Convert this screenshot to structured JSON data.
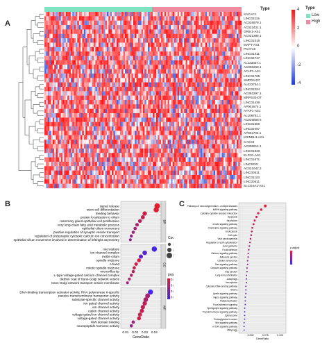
{
  "panel_labels": {
    "a": "A",
    "b": "B",
    "c": "C"
  },
  "heatmap": {
    "legend_title": "Type",
    "groups": [
      {
        "label": "Low",
        "color": "#7fe3c2"
      },
      {
        "label": "High",
        "color": "#f08aa0"
      }
    ],
    "scale_ticks": [
      "4",
      "2",
      "0",
      "-2",
      "-4"
    ],
    "scale_colors": {
      "high": "#e41a1c",
      "mid": "#ffffff",
      "low": "#1f3bd4"
    },
    "genes": [
      "SACAF2",
      "LINC02115",
      "AC026978.1",
      "AC023421.1",
      "GRIK1-AS1",
      "AC021395.1",
      "LINC01016",
      "MAPT-AS1",
      "PCAT18",
      "LINC01411",
      "LINC02747",
      "AL133337.1",
      "AC008268.1",
      "AFAP1-AS1",
      "LINC01765",
      "SMPD3-DT",
      "AL023754.1",
      "LINC02224",
      "AC093297.1",
      "MRPS33-DT",
      "LINC01436",
      "AP001574.1",
      "AFAP1-AS1",
      "AL109751.1",
      "AC025858.6",
      "LINC01656",
      "LINC02497",
      "AP001703.1",
      "KRINBL3-AS1",
      "CASC8",
      "AC008914.1",
      "LINC01833",
      "ELFN1-AS1",
      "LINC01671",
      "LINCROD",
      "AC021042.2",
      "LINC00511",
      "LINC01133",
      "LINC00511",
      "SLCO4A1-AS1"
    ]
  },
  "go_dotplot": {
    "xlabel": "GeneRatio",
    "x_ticks": [
      "0.01",
      "0.02",
      "0.03",
      "0.04"
    ],
    "size_legend": {
      "title": "Count",
      "values": [
        "10",
        "20",
        "30"
      ]
    },
    "color_legend": {
      "title": "pvalue",
      "values": [
        "0.01",
        "0.02",
        "0.03",
        "0.04"
      ]
    },
    "sections": [
      {
        "name": "BP",
        "terms": [
          "signal release",
          "stem cell differentiation",
          "feeding behavior",
          "protein localization to cilium",
          "mammary gland epithelial cell proliferation",
          "very long-chain fatty acid metabolic process",
          "epithelial cilium movement",
          "positive regulation of synaptic vesicle transport",
          "regulation of presynaptic cytosolic calcium ion concentration",
          "epithelial cilium movement involved in determination of left/right asymmetry"
        ],
        "generatio": [
          0.043,
          0.042,
          0.03,
          0.028,
          0.025,
          0.022,
          0.02,
          0.018,
          0.016,
          0.015
        ],
        "count": [
          30,
          28,
          20,
          18,
          16,
          14,
          12,
          11,
          10,
          9
        ],
        "pvalue": [
          0.005,
          0.006,
          0.01,
          0.012,
          0.014,
          0.016,
          0.018,
          0.02,
          0.022,
          0.024
        ]
      },
      {
        "name": "CC",
        "terms": [
          "microtubule",
          "ion channel complex",
          "motile cilium",
          "spindle midzone",
          "A band",
          "mitotic spindle midzone",
          "microvillus tip",
          "L-type voltage-gated calcium channel complex",
          "clathrin coat of trans-Golgi network vesicle",
          "trans-Golgi network transport vesicle membrane"
        ],
        "generatio": [
          0.04,
          0.03,
          0.026,
          0.024,
          0.021,
          0.019,
          0.018,
          0.016,
          0.014,
          0.012
        ],
        "count": [
          28,
          22,
          19,
          16,
          14,
          12,
          11,
          10,
          9,
          8
        ],
        "pvalue": [
          0.04,
          0.036,
          0.034,
          0.008,
          0.01,
          0.012,
          0.014,
          0.016,
          0.018,
          0.02
        ]
      },
      {
        "name": "MF",
        "terms": [
          "DNA-binding transcription activator activity, RNA polymerase II-specific",
          "passive transmembrane transporter activity",
          "substrate-specific channel activity",
          "ion gated channel activity",
          "ion channel activity",
          "cation channel activity",
          "voltage-gated ion channel activity",
          "voltage-gated channel activity",
          "WW domain binding",
          "neuropeptide hormone activity"
        ],
        "generatio": [
          0.036,
          0.033,
          0.031,
          0.03,
          0.028,
          0.027,
          0.025,
          0.024,
          0.018,
          0.016
        ],
        "count": [
          26,
          24,
          22,
          21,
          20,
          19,
          18,
          17,
          12,
          11
        ],
        "pvalue": [
          0.04,
          0.018,
          0.016,
          0.014,
          0.013,
          0.012,
          0.011,
          0.01,
          0.02,
          0.022
        ]
      }
    ]
  },
  "kegg_plot": {
    "xlabel": "GeneRatio",
    "legend_title": "p.adjust",
    "terms": [
      "Pathways of neurodegeneration - multiple diseases",
      "MAPK signaling pathway",
      "Cytokine-cytokine receptor interaction",
      "Apoptosis",
      "Alcoholism",
      "Insulin signaling pathway",
      "Chemokine signaling pathway",
      "Endocytosis",
      "Cell cycle",
      "Viral carcinogenesis",
      "Regulation of actin cytoskeleton",
      "Axon guidance",
      "Focal adhesion",
      "Calcium signaling pathway",
      "Adherens junction",
      "Cellular senescence",
      "Ras signaling pathway",
      "Oxytocin signaling pathway",
      "Gap junction",
      "Long-term potentiation",
      "Autophagy",
      "Necroptosis",
      "Cytosolic DNA-sensing pathway",
      "Glioma",
      "Apelin signaling pathway",
      "Hippo signaling pathway",
      "Platelet activation",
      "Focal adhesion signaling",
      "Sphingolipid signaling pathway",
      "Thyroid hormone signaling pathway",
      "Spliceosome",
      "Proteoglycans in cancer",
      "Wnt signaling pathway",
      "mTOR signaling pathway",
      "Mitophagy"
    ],
    "generatio": [
      0.075,
      0.068,
      0.063,
      0.06,
      0.057,
      0.055,
      0.053,
      0.052,
      0.051,
      0.05,
      0.049,
      0.048,
      0.047,
      0.046,
      0.046,
      0.045,
      0.045,
      0.044,
      0.044,
      0.043,
      0.043,
      0.043,
      0.042,
      0.042,
      0.042,
      0.041,
      0.041,
      0.041,
      0.04,
      0.04,
      0.04,
      0.04,
      0.039,
      0.039,
      0.039
    ],
    "x_ticks": [
      "0.050",
      "0.075",
      "0.100"
    ]
  }
}
